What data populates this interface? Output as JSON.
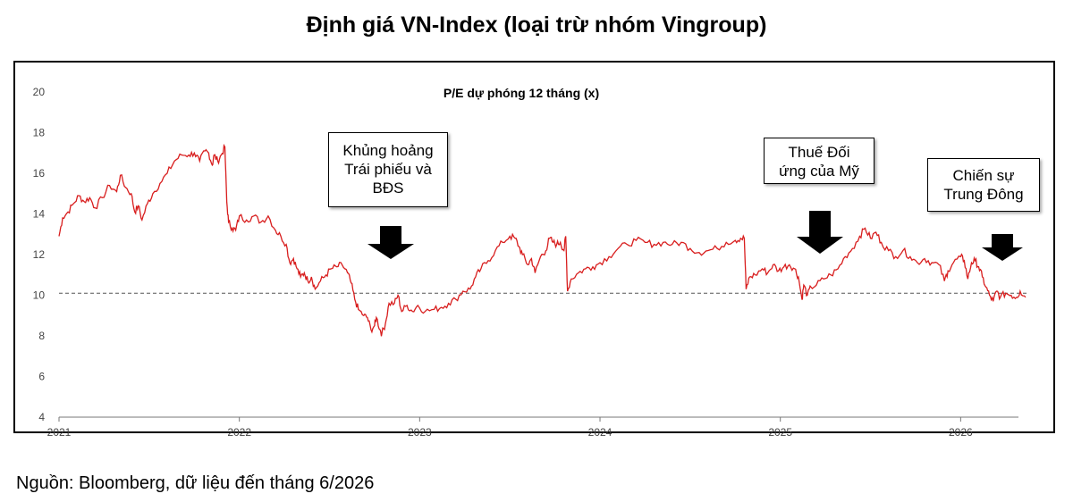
{
  "page": {
    "title": "Định giá VN-Index (loại trừ nhóm Vingroup)",
    "source": "Nguồn: Bloomberg, dữ liệu đến tháng 6/2026"
  },
  "chart_data": {
    "type": "line",
    "title": "P/E dự phóng 12 tháng (x)",
    "xlabel": "",
    "ylabel": "",
    "x_tick_labels": [
      "2021",
      "2022",
      "2023",
      "2024",
      "2025",
      "2026"
    ],
    "y_tick_labels": [
      "4",
      "6",
      "8",
      "10",
      "12",
      "14",
      "16",
      "18",
      "20"
    ],
    "ylim": [
      4,
      20
    ],
    "xlim": [
      2021.0,
      2026.38
    ],
    "grid": false,
    "line_color": "#d81e1e",
    "reference_line": {
      "value": 10.1,
      "style": "dashed",
      "color": "#555555"
    },
    "series": [
      {
        "values": [
          [
            2021.0,
            12.9
          ],
          [
            2021.02,
            13.8
          ],
          [
            2021.05,
            14.1
          ],
          [
            2021.08,
            14.5
          ],
          [
            2021.11,
            14.9
          ],
          [
            2021.14,
            14.6
          ],
          [
            2021.17,
            14.8
          ],
          [
            2021.2,
            14.3
          ],
          [
            2021.24,
            14.8
          ],
          [
            2021.28,
            15.4
          ],
          [
            2021.32,
            15.1
          ],
          [
            2021.34,
            15.9
          ],
          [
            2021.37,
            15.3
          ],
          [
            2021.4,
            15.0
          ],
          [
            2021.42,
            14.1
          ],
          [
            2021.44,
            14.4
          ],
          [
            2021.46,
            13.7
          ],
          [
            2021.49,
            14.5
          ],
          [
            2021.52,
            15.0
          ],
          [
            2021.56,
            15.5
          ],
          [
            2021.6,
            16.0
          ],
          [
            2021.64,
            16.6
          ],
          [
            2021.68,
            16.9
          ],
          [
            2021.72,
            16.9
          ],
          [
            2021.75,
            17.0
          ],
          [
            2021.78,
            16.6
          ],
          [
            2021.81,
            17.1
          ],
          [
            2021.83,
            17.0
          ],
          [
            2021.85,
            16.4
          ],
          [
            2021.86,
            16.9
          ],
          [
            2021.88,
            16.6
          ],
          [
            2021.9,
            16.9
          ],
          [
            2021.92,
            17.3
          ],
          [
            2021.93,
            14.6
          ],
          [
            2021.94,
            13.6
          ],
          [
            2021.96,
            13.3
          ],
          [
            2021.98,
            13.2
          ],
          [
            2022.0,
            13.9
          ],
          [
            2022.04,
            13.7
          ],
          [
            2022.08,
            13.9
          ],
          [
            2022.12,
            13.6
          ],
          [
            2022.16,
            13.9
          ],
          [
            2022.2,
            13.2
          ],
          [
            2022.23,
            12.9
          ],
          [
            2022.26,
            12.5
          ],
          [
            2022.28,
            11.6
          ],
          [
            2022.3,
            11.8
          ],
          [
            2022.32,
            11.3
          ],
          [
            2022.34,
            10.9
          ],
          [
            2022.36,
            11.1
          ],
          [
            2022.38,
            10.7
          ],
          [
            2022.4,
            10.9
          ],
          [
            2022.42,
            10.3
          ],
          [
            2022.45,
            10.7
          ],
          [
            2022.48,
            11.0
          ],
          [
            2022.51,
            11.3
          ],
          [
            2022.54,
            11.4
          ],
          [
            2022.57,
            11.5
          ],
          [
            2022.6,
            11.1
          ],
          [
            2022.62,
            10.6
          ],
          [
            2022.64,
            9.8
          ],
          [
            2022.66,
            9.3
          ],
          [
            2022.69,
            9.0
          ],
          [
            2022.71,
            8.9
          ],
          [
            2022.73,
            8.3
          ],
          [
            2022.75,
            8.5
          ],
          [
            2022.76,
            8.9
          ],
          [
            2022.78,
            8.3
          ],
          [
            2022.79,
            8.1
          ],
          [
            2022.81,
            8.6
          ],
          [
            2022.83,
            9.6
          ],
          [
            2022.86,
            9.6
          ],
          [
            2022.88,
            10.0
          ],
          [
            2022.9,
            9.2
          ],
          [
            2022.93,
            9.5
          ],
          [
            2022.96,
            9.2
          ],
          [
            2022.99,
            9.5
          ],
          [
            2023.03,
            9.2
          ],
          [
            2023.08,
            9.3
          ],
          [
            2023.12,
            9.4
          ],
          [
            2023.16,
            9.6
          ],
          [
            2023.2,
            9.8
          ],
          [
            2023.24,
            10.2
          ],
          [
            2023.28,
            10.3
          ],
          [
            2023.31,
            10.9
          ],
          [
            2023.34,
            11.3
          ],
          [
            2023.38,
            11.7
          ],
          [
            2023.42,
            12.2
          ],
          [
            2023.46,
            12.6
          ],
          [
            2023.5,
            12.9
          ],
          [
            2023.53,
            12.8
          ],
          [
            2023.55,
            12.4
          ],
          [
            2023.57,
            12.0
          ],
          [
            2023.6,
            11.5
          ],
          [
            2023.62,
            11.8
          ],
          [
            2023.64,
            11.1
          ],
          [
            2023.67,
            11.9
          ],
          [
            2023.7,
            12.2
          ],
          [
            2023.72,
            12.8
          ],
          [
            2023.74,
            12.6
          ],
          [
            2023.76,
            12.5
          ],
          [
            2023.78,
            12.6
          ],
          [
            2023.8,
            12.2
          ],
          [
            2023.81,
            12.9
          ],
          [
            2023.82,
            10.2
          ],
          [
            2023.84,
            10.8
          ],
          [
            2023.88,
            11.1
          ],
          [
            2023.92,
            11.3
          ],
          [
            2023.96,
            11.4
          ],
          [
            2024.0,
            11.6
          ],
          [
            2024.05,
            11.9
          ],
          [
            2024.1,
            12.3
          ],
          [
            2024.15,
            12.5
          ],
          [
            2024.2,
            12.7
          ],
          [
            2024.25,
            12.6
          ],
          [
            2024.3,
            12.5
          ],
          [
            2024.35,
            12.6
          ],
          [
            2024.4,
            12.5
          ],
          [
            2024.45,
            12.6
          ],
          [
            2024.5,
            12.3
          ],
          [
            2024.55,
            12.1
          ],
          [
            2024.6,
            12.2
          ],
          [
            2024.65,
            12.3
          ],
          [
            2024.7,
            12.6
          ],
          [
            2024.75,
            12.7
          ],
          [
            2024.78,
            12.8
          ],
          [
            2024.8,
            12.8
          ],
          [
            2024.81,
            10.3
          ],
          [
            2024.83,
            10.9
          ],
          [
            2024.86,
            11.0
          ],
          [
            2024.9,
            11.3
          ],
          [
            2024.93,
            11.1
          ],
          [
            2024.96,
            11.5
          ],
          [
            2024.99,
            11.2
          ],
          [
            2025.02,
            11.4
          ],
          [
            2025.05,
            11.5
          ],
          [
            2025.08,
            11.3
          ],
          [
            2025.1,
            10.9
          ],
          [
            2025.12,
            9.8
          ],
          [
            2025.13,
            10.5
          ],
          [
            2025.15,
            10.0
          ],
          [
            2025.17,
            10.4
          ],
          [
            2025.2,
            10.5
          ],
          [
            2025.24,
            10.8
          ],
          [
            2025.28,
            11.0
          ],
          [
            2025.32,
            11.3
          ],
          [
            2025.36,
            11.9
          ],
          [
            2025.4,
            12.3
          ],
          [
            2025.44,
            12.9
          ],
          [
            2025.47,
            13.3
          ],
          [
            2025.5,
            12.8
          ],
          [
            2025.53,
            13.1
          ],
          [
            2025.56,
            12.6
          ],
          [
            2025.6,
            12.2
          ],
          [
            2025.64,
            11.9
          ],
          [
            2025.68,
            12.2
          ],
          [
            2025.72,
            11.9
          ],
          [
            2025.76,
            11.6
          ],
          [
            2025.8,
            11.8
          ],
          [
            2025.84,
            11.6
          ],
          [
            2025.88,
            11.5
          ],
          [
            2025.91,
            10.7
          ],
          [
            2025.93,
            11.2
          ],
          [
            2025.96,
            11.6
          ],
          [
            2026.0,
            11.9
          ],
          [
            2026.02,
            11.7
          ],
          [
            2026.04,
            10.8
          ],
          [
            2026.06,
            11.6
          ],
          [
            2026.08,
            11.7
          ],
          [
            2026.1,
            11.4
          ],
          [
            2026.12,
            10.9
          ],
          [
            2026.14,
            10.4
          ],
          [
            2026.16,
            10.0
          ],
          [
            2026.18,
            9.7
          ],
          [
            2026.2,
            10.2
          ],
          [
            2026.22,
            9.9
          ],
          [
            2026.25,
            10.1
          ],
          [
            2026.28,
            10.0
          ],
          [
            2026.31,
            9.9
          ],
          [
            2026.33,
            10.2
          ],
          [
            2026.36,
            9.9
          ]
        ]
      }
    ],
    "annotations": [
      {
        "text": [
          "Khủng hoảng",
          "Trái phiếu và",
          "BĐS"
        ]
      },
      {
        "text": [
          "Thuế Đối",
          "ứng của Mỹ"
        ]
      },
      {
        "text": [
          "Chiến sự",
          "Trung Đông"
        ]
      }
    ]
  }
}
